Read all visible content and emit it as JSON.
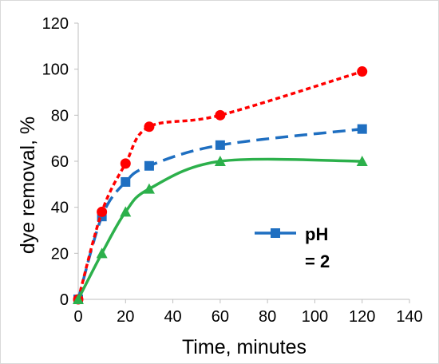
{
  "chart_data": {
    "type": "line",
    "xlabel": "Time, minutes",
    "ylabel": "dye removal, %",
    "xlim": [
      0,
      140
    ],
    "ylim": [
      0,
      120
    ],
    "x_ticks": [
      0,
      20,
      40,
      60,
      80,
      100,
      120,
      140
    ],
    "y_ticks": [
      0,
      20,
      40,
      60,
      80,
      100,
      120
    ],
    "grid": false,
    "legend": {
      "position": "center-right",
      "entries": [
        {
          "label_line1": "pH",
          "label_line2": "= 2",
          "series_index": 0
        }
      ]
    },
    "series": [
      {
        "name": "pH = 2",
        "x": [
          0,
          10,
          20,
          30,
          60,
          120
        ],
        "y": [
          0,
          36,
          51,
          58,
          67,
          74
        ],
        "color": "#1f6fc1",
        "line_style": "long-dash",
        "marker": "square"
      },
      {
        "x": [
          0,
          10,
          20,
          30,
          60,
          120
        ],
        "y": [
          0,
          38,
          59,
          75,
          80,
          99
        ],
        "color": "#ff0000",
        "line_style": "short-dash",
        "marker": "circle"
      },
      {
        "x": [
          0,
          10,
          20,
          30,
          60,
          120
        ],
        "y": [
          0,
          20,
          38,
          48,
          60,
          60
        ],
        "color": "#2cb04b",
        "line_style": "solid",
        "marker": "triangle"
      }
    ]
  }
}
